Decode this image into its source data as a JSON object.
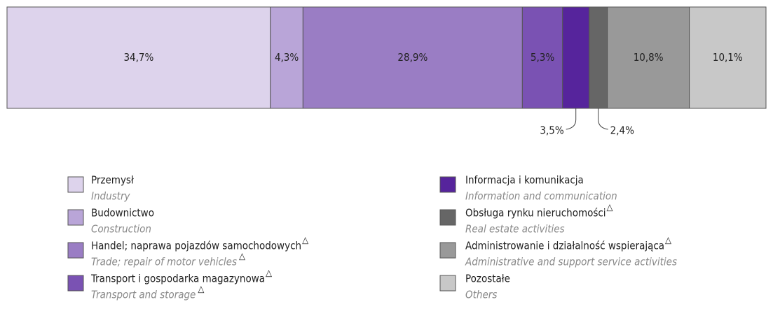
{
  "chart_data": {
    "type": "stacked-bar-100",
    "series": [
      {
        "name": "Przemysł",
        "label": "Industry",
        "color": "#ddd3ec",
        "value": 34.7,
        "value_label": "34,7%"
      },
      {
        "name": "Budownictwo",
        "label": "Construction",
        "color": "#b9a5d8",
        "value": 4.3,
        "value_label": "4,3%"
      },
      {
        "name": "Handel; naprawa pojazdów samochodowych",
        "name_note": "△",
        "label": "Trade; repair of motor vehicles",
        "label_note": "△",
        "color": "#9a7dc4",
        "value": 28.9,
        "value_label": "28,9%"
      },
      {
        "name": "Transport i gospodarka magazynowa",
        "name_note": "△",
        "label": "Transport and storage",
        "label_note": "△",
        "color": "#7a52b3",
        "value": 5.3,
        "value_label": "5,3%"
      },
      {
        "name": "Informacja i komunikacja",
        "label": "Information and communication",
        "color": "#56249c",
        "value": 3.5,
        "value_label": "3,5%"
      },
      {
        "name": "Obsługa rynku nieruchomości",
        "name_note": "△",
        "label": "Real estate activities",
        "color": "#666666",
        "value": 2.4,
        "value_label": "2,4%"
      },
      {
        "name": "Administrowanie i działalność wspierająca",
        "name_note": "△",
        "label": "Administrative and support service activities",
        "color": "#999999",
        "value": 10.8,
        "value_label": "10,8%"
      },
      {
        "name": "Pozostałe",
        "label": "Others",
        "color": "#c8c8c8",
        "value": 10.1,
        "value_label": "10,1%"
      }
    ]
  }
}
